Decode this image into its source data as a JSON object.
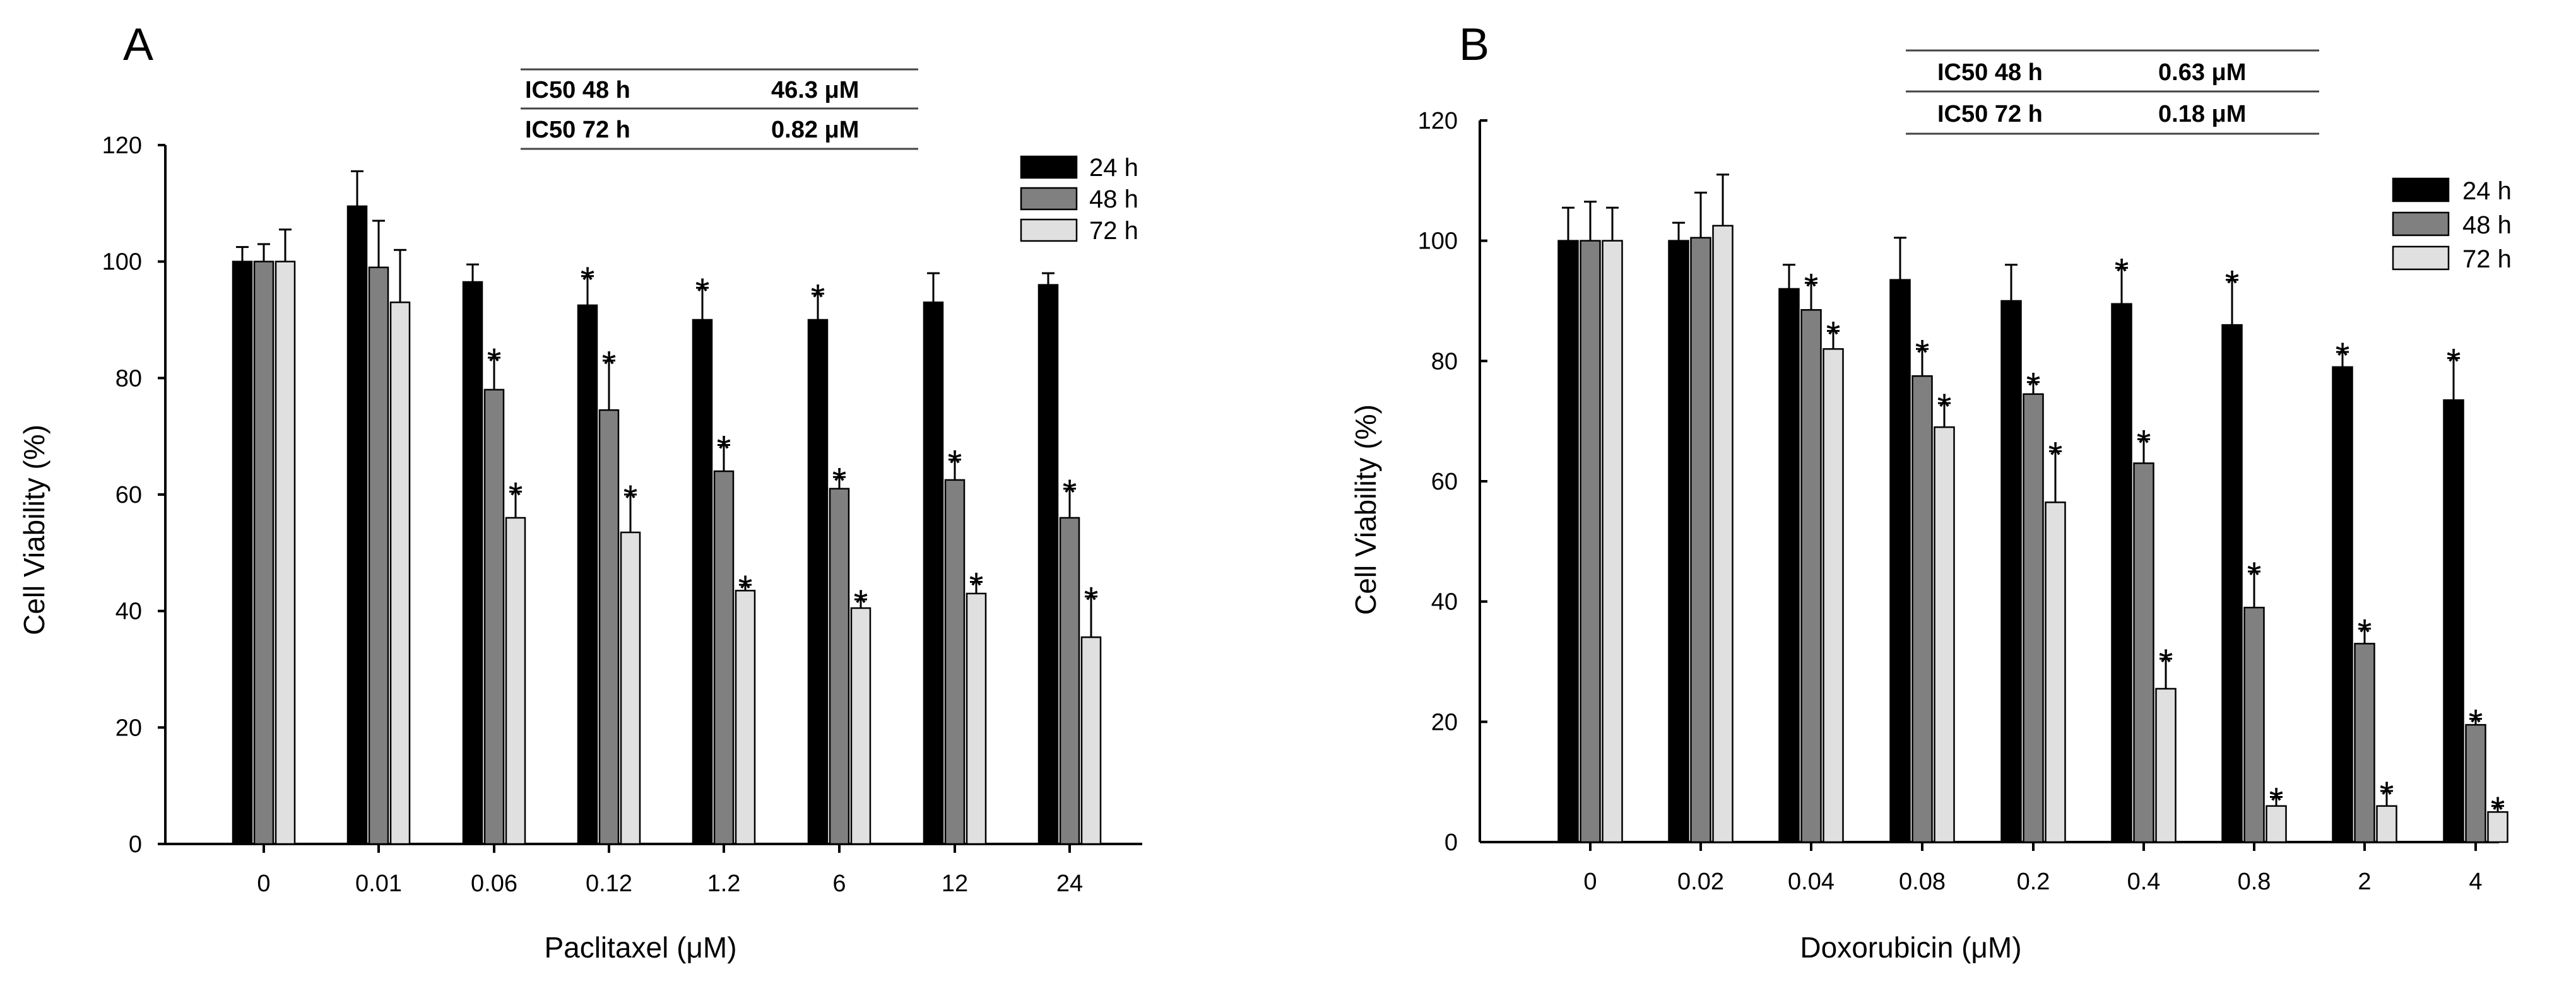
{
  "chart_data": [
    {
      "type": "bar",
      "panel": "A",
      "xlabel": "Paclitaxel (μM)",
      "ylabel": "Cell Viability (%)",
      "ylim": [
        0,
        120
      ],
      "yticks": [
        0,
        20,
        40,
        60,
        80,
        100,
        120
      ],
      "categories": [
        "0",
        "0.01",
        "0.06",
        "0.12",
        "1.2",
        "6",
        "12",
        "24"
      ],
      "series": [
        {
          "name": "24 h",
          "color": "#000000",
          "values": [
            100,
            109.5,
            96.5,
            92.5,
            90,
            90,
            93,
            96
          ],
          "errors": [
            2.5,
            6,
            3,
            5,
            5.5,
            4.5,
            5,
            2
          ],
          "significant": [
            false,
            false,
            false,
            true,
            true,
            true,
            false,
            false
          ]
        },
        {
          "name": "48 h",
          "color": "#808080",
          "values": [
            100,
            99,
            78,
            74.5,
            64,
            61,
            62.5,
            56
          ],
          "errors": [
            3,
            8,
            5.5,
            8.5,
            4.5,
            2,
            3.5,
            5
          ],
          "significant": [
            false,
            false,
            true,
            true,
            true,
            true,
            true,
            true
          ]
        },
        {
          "name": "72 h",
          "color": "#e0e0e0",
          "values": [
            100,
            93,
            56,
            53.5,
            43.5,
            40.5,
            43,
            35.5
          ],
          "errors": [
            5.5,
            9,
            4.5,
            6.5,
            1,
            1.5,
            2,
            7
          ],
          "significant": [
            false,
            false,
            true,
            true,
            true,
            true,
            true,
            true
          ]
        }
      ],
      "legend": [
        "24 h",
        "48 h",
        "72 h"
      ],
      "ic50_table": [
        {
          "label": "IC50 48 h",
          "value": "46.3 μM"
        },
        {
          "label": "IC50 72 h",
          "value": "0.82 μM"
        }
      ]
    },
    {
      "type": "bar",
      "panel": "B",
      "xlabel": "Doxorubicin (μM)",
      "ylabel": "Cell Viability (%)",
      "ylim": [
        0,
        120
      ],
      "yticks": [
        0,
        20,
        40,
        60,
        80,
        100,
        120
      ],
      "categories": [
        "0",
        "0.02",
        "0.04",
        "0.08",
        "0.2",
        "0.4",
        "0.8",
        "2",
        "4"
      ],
      "series": [
        {
          "name": "24 h",
          "color": "#000000",
          "values": [
            100,
            100,
            92,
            93.5,
            90,
            89.5,
            86,
            79,
            73.5
          ],
          "errors": [
            5.5,
            3,
            4,
            7,
            6,
            6,
            7.5,
            2.5,
            7
          ],
          "significant": [
            false,
            false,
            false,
            false,
            false,
            true,
            true,
            true,
            true
          ]
        },
        {
          "name": "48 h",
          "color": "#808080",
          "values": [
            100,
            100.5,
            88.5,
            77.5,
            74.5,
            63,
            39,
            33,
            19.5
          ],
          "errors": [
            6.5,
            7.5,
            4.5,
            4.5,
            2,
            4,
            6,
            2.5,
            1
          ],
          "significant": [
            false,
            false,
            true,
            true,
            true,
            true,
            true,
            true,
            true
          ]
        },
        {
          "name": "72 h",
          "color": "#e0e0e0",
          "values": [
            100,
            102.5,
            82,
            69,
            56.5,
            25.5,
            6,
            6,
            5
          ],
          "errors": [
            5.5,
            8.5,
            3,
            4,
            8.5,
            5,
            1.5,
            2.5,
            1
          ],
          "significant": [
            false,
            false,
            true,
            true,
            true,
            true,
            true,
            true,
            true
          ]
        }
      ],
      "legend": [
        "24 h",
        "48 h",
        "72 h"
      ],
      "ic50_table": [
        {
          "label": "IC50 48 h",
          "value": "0.63 μM"
        },
        {
          "label": "IC50 72 h",
          "value": "0.18 μM"
        }
      ]
    }
  ],
  "panel_letters": [
    "A",
    "B"
  ],
  "significance_marker": "*"
}
